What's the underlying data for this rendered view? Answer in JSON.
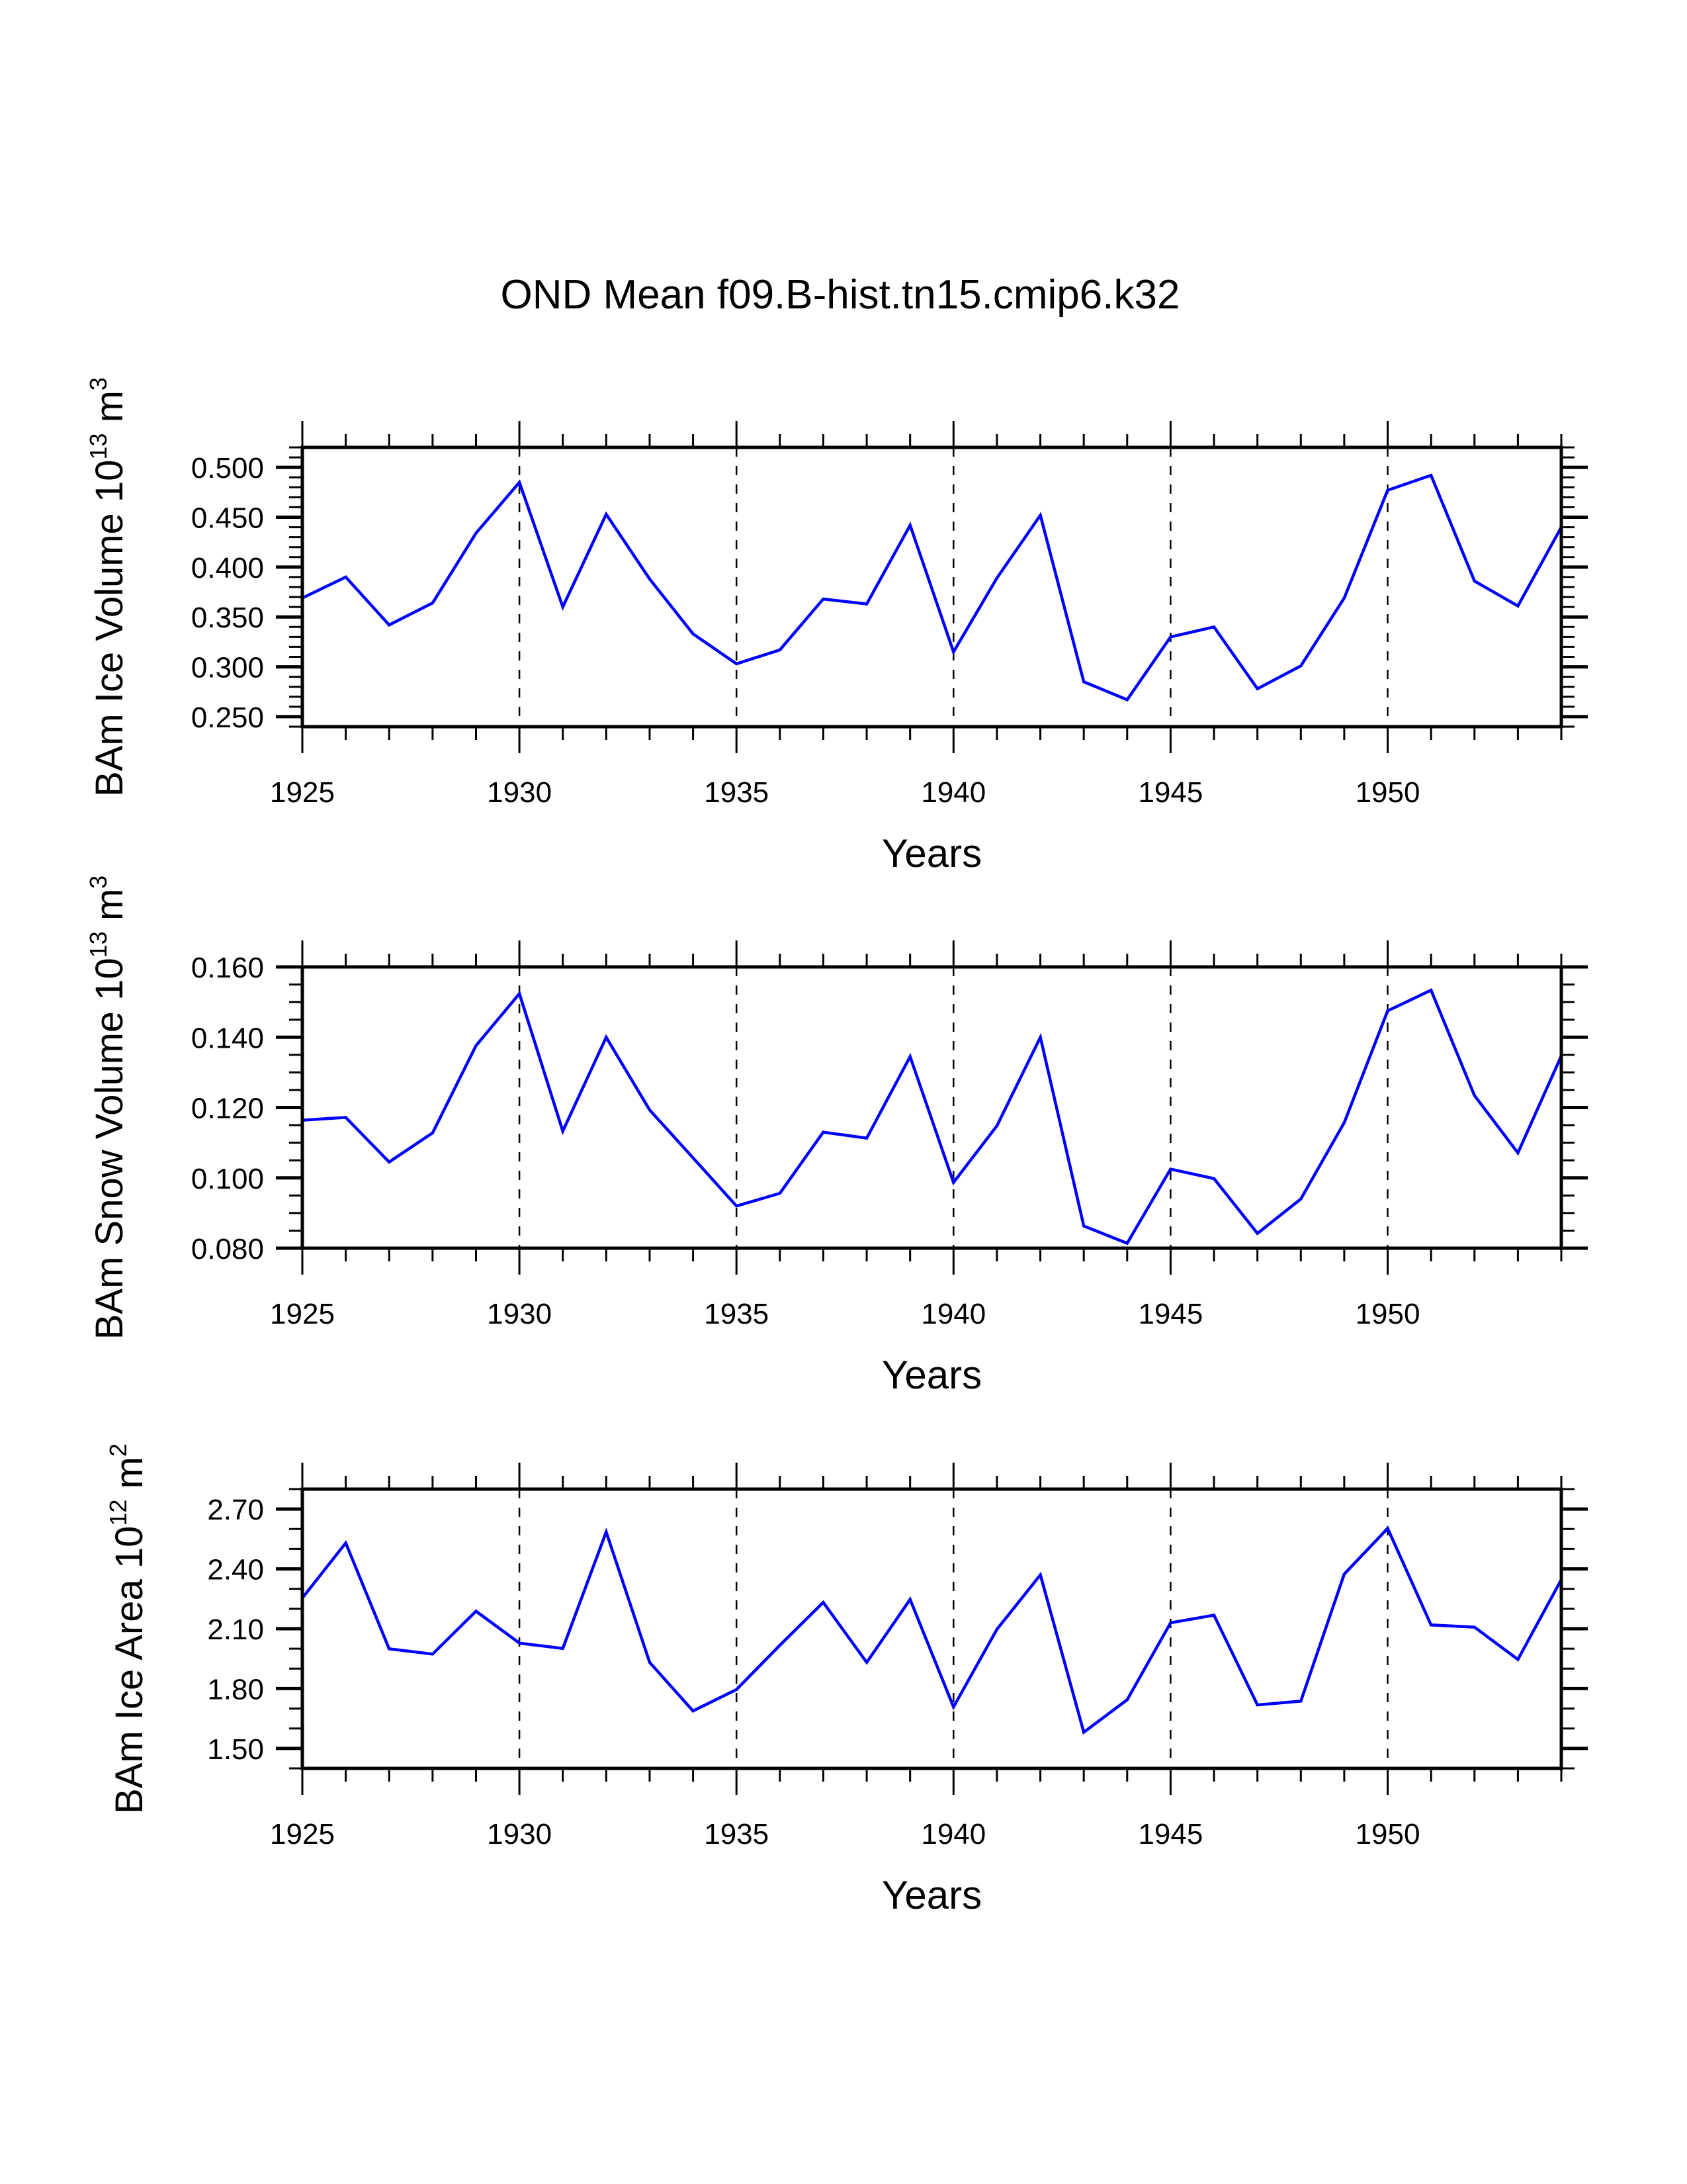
{
  "title": "OND Mean f09.B-hist.tn15.cmip6.k32",
  "chart_data": [
    {
      "type": "line",
      "title": "OND Mean f09.B-hist.tn15.cmip6.k32",
      "xlabel": "Years",
      "ylabel": "BAm Ice Volume",
      "ylabel_exponent": "13",
      "ylabel_unit": "m",
      "ylabel_unit_power": "3",
      "xlim": [
        1925,
        1954
      ],
      "ylim": [
        0.24,
        0.52
      ],
      "x_major_ticks": [
        1925,
        1930,
        1935,
        1940,
        1945,
        1950
      ],
      "x_tick_labels": [
        "1925",
        "1930",
        "1935",
        "1940",
        "1945",
        "1950"
      ],
      "y_major_ticks": [
        0.25,
        0.3,
        0.35,
        0.4,
        0.45,
        0.5
      ],
      "y_tick_labels": [
        "0.250",
        "0.300",
        "0.350",
        "0.400",
        "0.450",
        "0.500"
      ],
      "y_minor_step": 0.01,
      "grid": "vertical dashed at major x ticks",
      "color": "#0000ff",
      "x": [
        1925,
        1926,
        1927,
        1928,
        1929,
        1930,
        1931,
        1932,
        1933,
        1934,
        1935,
        1936,
        1937,
        1938,
        1939,
        1940,
        1941,
        1942,
        1943,
        1944,
        1945,
        1946,
        1947,
        1948,
        1949,
        1950,
        1951,
        1952,
        1953,
        1954
      ],
      "values": [
        0.369,
        0.39,
        0.342,
        0.364,
        0.434,
        0.485,
        0.36,
        0.453,
        0.388,
        0.333,
        0.303,
        0.317,
        0.368,
        0.363,
        0.442,
        0.315,
        0.389,
        0.452,
        0.285,
        0.267,
        0.33,
        0.34,
        0.278,
        0.301,
        0.369,
        0.477,
        0.492,
        0.386,
        0.361,
        0.44
      ]
    },
    {
      "type": "line",
      "xlabel": "Years",
      "ylabel": "BAm Snow Volume",
      "ylabel_exponent": "13",
      "ylabel_unit": "m",
      "ylabel_unit_power": "3",
      "xlim": [
        1925,
        1954
      ],
      "ylim": [
        0.08,
        0.16
      ],
      "x_major_ticks": [
        1925,
        1930,
        1935,
        1940,
        1945,
        1950
      ],
      "x_tick_labels": [
        "1925",
        "1930",
        "1935",
        "1940",
        "1945",
        "1950"
      ],
      "y_major_ticks": [
        0.08,
        0.1,
        0.12,
        0.14,
        0.16
      ],
      "y_tick_labels": [
        "0.080",
        "0.100",
        "0.120",
        "0.140",
        "0.160"
      ],
      "y_minor_step": 0.005,
      "grid": "vertical dashed at major x ticks",
      "color": "#0000ff",
      "x": [
        1925,
        1926,
        1927,
        1928,
        1929,
        1930,
        1931,
        1932,
        1933,
        1934,
        1935,
        1936,
        1937,
        1938,
        1939,
        1940,
        1941,
        1942,
        1943,
        1944,
        1945,
        1946,
        1947,
        1948,
        1949,
        1950,
        1951,
        1952,
        1953,
        1954
      ],
      "values": [
        0.1164,
        0.1172,
        0.1045,
        0.1128,
        0.1376,
        0.1524,
        0.1133,
        0.14,
        0.1193,
        0.1057,
        0.092,
        0.0956,
        0.113,
        0.1113,
        0.1345,
        0.0987,
        0.1148,
        0.14,
        0.0863,
        0.0814,
        0.1025,
        0.0998,
        0.0842,
        0.094,
        0.1157,
        0.1475,
        0.1534,
        0.1234,
        0.1071,
        0.1347
      ]
    },
    {
      "type": "line",
      "xlabel": "Years",
      "ylabel": "BAm Ice Area",
      "ylabel_exponent": "12",
      "ylabel_unit": "m",
      "ylabel_unit_power": "2",
      "xlim": [
        1925,
        1954
      ],
      "ylim": [
        1.4,
        2.8
      ],
      "x_major_ticks": [
        1925,
        1930,
        1935,
        1940,
        1945,
        1950
      ],
      "x_tick_labels": [
        "1925",
        "1930",
        "1935",
        "1940",
        "1945",
        "1950"
      ],
      "y_major_ticks": [
        1.5,
        1.8,
        2.1,
        2.4,
        2.7
      ],
      "y_tick_labels": [
        "1.50",
        "1.80",
        "2.10",
        "2.40",
        "2.70"
      ],
      "y_minor_step": 0.1,
      "grid": "vertical dashed at major x ticks",
      "color": "#0000ff",
      "x": [
        1925,
        1926,
        1927,
        1928,
        1929,
        1930,
        1931,
        1932,
        1933,
        1934,
        1935,
        1936,
        1937,
        1938,
        1939,
        1940,
        1941,
        1942,
        1943,
        1944,
        1945,
        1946,
        1947,
        1948,
        1949,
        1950,
        1951,
        1952,
        1953,
        1954
      ],
      "values": [
        2.254,
        2.53,
        1.999,
        1.973,
        2.188,
        2.028,
        2.001,
        2.585,
        1.931,
        1.688,
        1.795,
        2.017,
        2.232,
        1.931,
        2.247,
        1.708,
        2.097,
        2.37,
        1.581,
        1.744,
        2.13,
        2.168,
        1.718,
        1.737,
        2.374,
        2.603,
        2.119,
        2.108,
        1.946,
        2.346
      ]
    }
  ]
}
